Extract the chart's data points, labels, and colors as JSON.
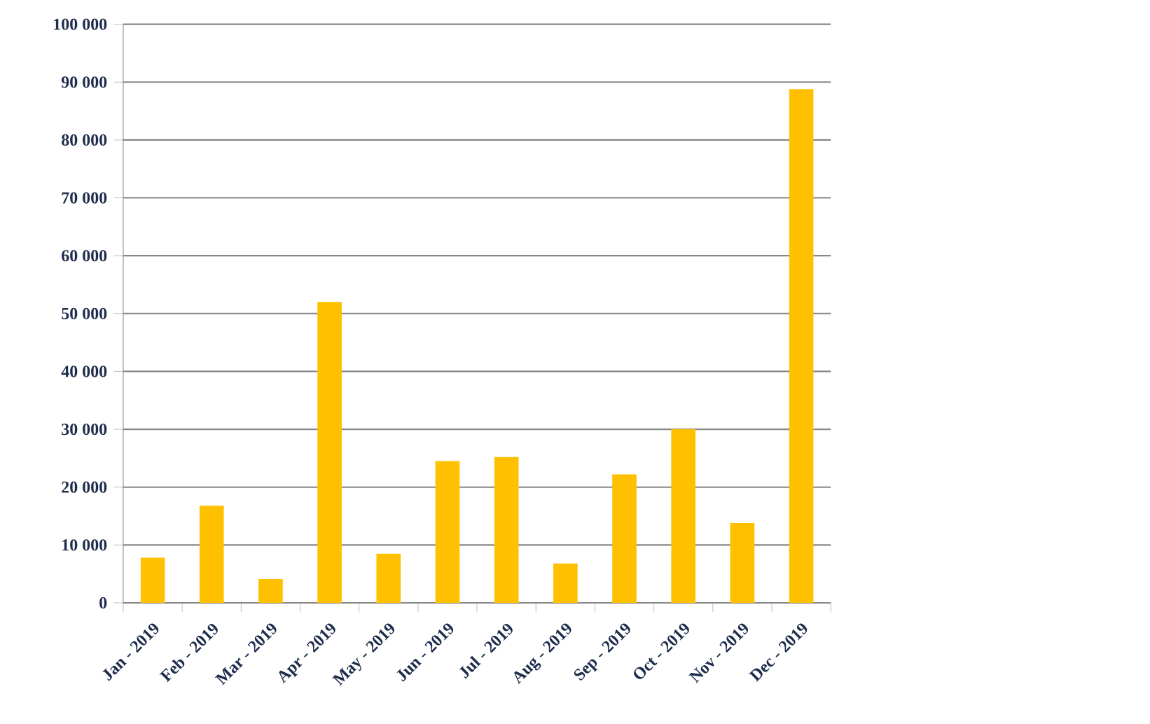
{
  "chart_data": {
    "type": "bar",
    "categories": [
      "Jan - 2019",
      "Feb - 2019",
      "Mar - 2019",
      "Apr - 2019",
      "May - 2019",
      "Jun - 2019",
      "Jul - 2019",
      "Aug - 2019",
      "Sep - 2019",
      "Oct - 2019",
      "Nov - 2019",
      "Dec - 2019"
    ],
    "values": [
      7800,
      16800,
      4100,
      52000,
      8500,
      24500,
      25200,
      6800,
      22200,
      30000,
      13800,
      88800
    ],
    "color": "#ffc000",
    "ylim": [
      0,
      100000
    ],
    "yticks": [
      {
        "value": 0,
        "label": "0"
      },
      {
        "value": 10000,
        "label": "10 000"
      },
      {
        "value": 20000,
        "label": "20 000"
      },
      {
        "value": 30000,
        "label": "30 000"
      },
      {
        "value": 40000,
        "label": "40 000"
      },
      {
        "value": 50000,
        "label": "50 000"
      },
      {
        "value": 60000,
        "label": "60 000"
      },
      {
        "value": 70000,
        "label": "70 000"
      },
      {
        "value": 80000,
        "label": "80 000"
      },
      {
        "value": 90000,
        "label": "90 000"
      },
      {
        "value": 100000,
        "label": "100 000"
      }
    ],
    "grid": "y"
  }
}
